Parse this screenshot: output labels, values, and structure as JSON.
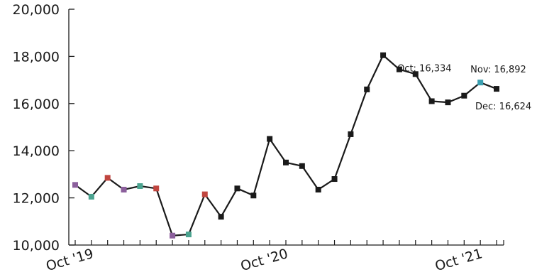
{
  "chart_data": {
    "type": "line",
    "title": "",
    "xlabel": "",
    "ylabel": "",
    "ylim": [
      10000,
      20000
    ],
    "y_ticks": [
      "10,000",
      "12,000",
      "14,000",
      "16,000",
      "18,000",
      "20,000"
    ],
    "x_tick_labels": [
      {
        "label": "Oct '19",
        "index": 0
      },
      {
        "label": "Oct '20",
        "index": 12
      },
      {
        "label": "Oct '21",
        "index": 24
      }
    ],
    "line_color": "#1a1a1a",
    "marker_colors": {
      "default": "#1a1a1a",
      "oct": "#8b5f9c",
      "nov": "#4aa38f",
      "dec": "#c0453f",
      "nov_2021": "#3a9fb0"
    },
    "x": [
      "Oct 2019",
      "Nov 2019",
      "Dec 2019",
      "Jan 2020",
      "Feb 2020",
      "Mar 2020",
      "Apr 2020",
      "May 2020",
      "Jun 2020",
      "Jul 2020",
      "Aug 2020",
      "Sep 2020",
      "Oct 2020",
      "Nov 2020",
      "Dec 2020",
      "Jan 2021",
      "Feb 2021",
      "Mar 2021",
      "Apr 2021",
      "May 2021",
      "Jun 2021",
      "Jul 2021",
      "Aug 2021",
      "Sep 2021",
      "Oct 2021",
      "Nov 2021",
      "Dec 2021"
    ],
    "series": [
      {
        "values": [
          12550,
          12050,
          12850,
          12350,
          12500,
          12400,
          10400,
          10450,
          12150,
          11200,
          12400,
          12100,
          14500,
          13500,
          13350,
          12350,
          12800,
          14700,
          16600,
          18050,
          17450,
          17250,
          16100,
          16050,
          16334,
          16892,
          16624
        ]
      }
    ],
    "highlight": [
      "oct",
      "nov",
      "dec",
      "oct",
      "nov",
      "dec",
      "oct",
      "nov",
      "dec"
    ],
    "annotations": [
      {
        "text": "Oct: 16,334",
        "index": 24
      },
      {
        "text": "Nov: 16,892",
        "index": 25
      },
      {
        "text": "Dec: 16,624",
        "index": 26
      }
    ]
  }
}
